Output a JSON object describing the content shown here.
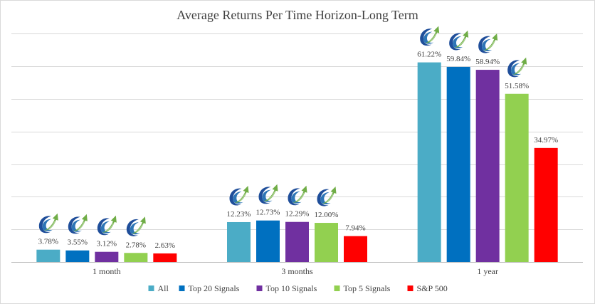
{
  "chart_data": {
    "type": "bar",
    "title": "Average Returns Per Time Horizon-Long Term",
    "categories": [
      "1 month",
      "3 months",
      "1 year"
    ],
    "series": [
      {
        "name": "All",
        "color": "#4bacc6",
        "values": [
          3.78,
          12.23,
          61.22
        ],
        "labels": [
          "3.78%",
          "12.23%",
          "61.22%"
        ]
      },
      {
        "name": "Top 20 Signals",
        "color": "#0070c0",
        "values": [
          3.55,
          12.73,
          59.84
        ],
        "labels": [
          "3.55%",
          "12.73%",
          "59.84%"
        ]
      },
      {
        "name": "Top 10 Signals",
        "color": "#7030a0",
        "values": [
          3.12,
          12.29,
          58.94
        ],
        "labels": [
          "3.12%",
          "12.29%",
          "58.94%"
        ]
      },
      {
        "name": "Top 5 Signals",
        "color": "#92d050",
        "values": [
          2.78,
          12.0,
          51.58
        ],
        "labels": [
          "2.78%",
          "12.00%",
          "51.58%"
        ]
      },
      {
        "name": "S&P 500",
        "color": "#ff0000",
        "values": [
          2.63,
          7.94,
          34.97
        ],
        "labels": [
          "2.63%",
          "7.94%",
          "34.97%"
        ]
      }
    ],
    "ylim": [
      0,
      70
    ],
    "grid": true,
    "legend": "bottom",
    "marker_icon": "rising-arrow-logo-icon",
    "marker_series": [
      "All",
      "Top 20 Signals",
      "Top 10 Signals",
      "Top 5 Signals"
    ]
  }
}
